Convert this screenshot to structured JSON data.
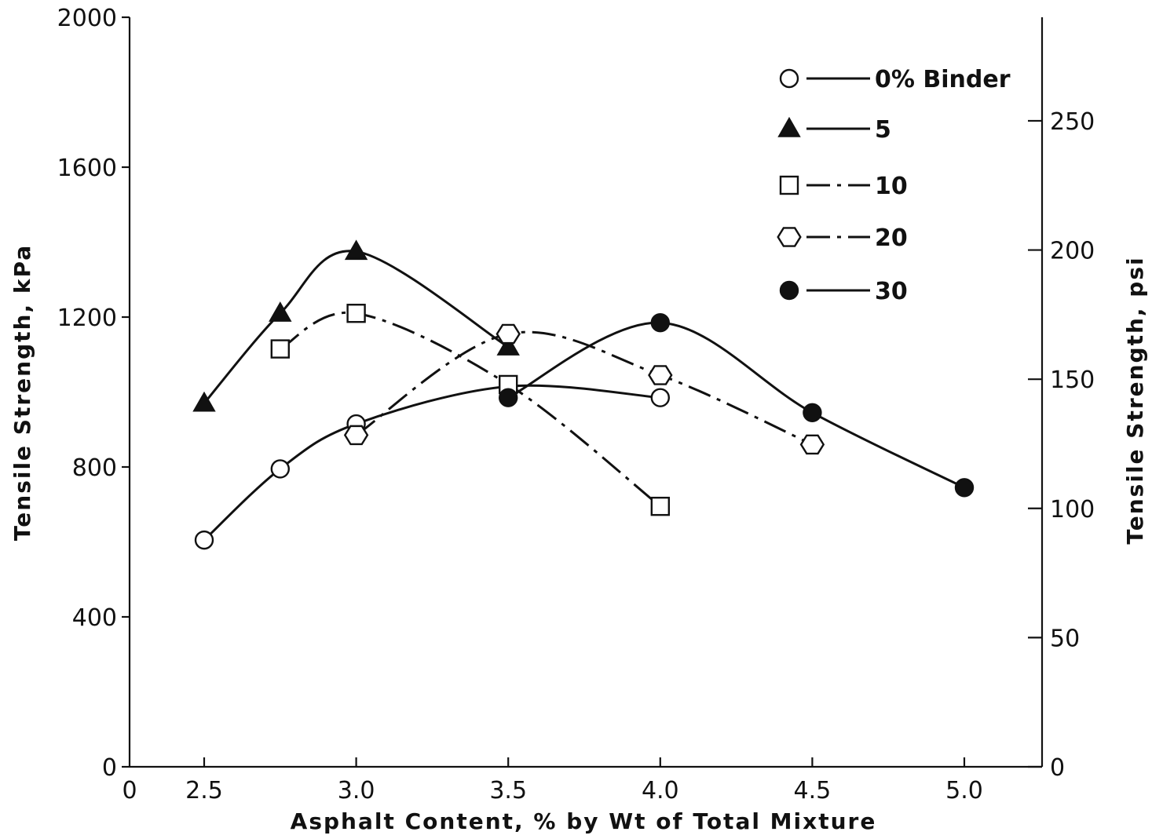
{
  "chart_data": {
    "type": "line",
    "xlabel": "Asphalt Content, % by Wt of Total Mixture",
    "ylabel": "Tensile Strength, kPa",
    "ylabel_right": "Tensile Strength, psi",
    "xlim": [
      0,
      5.25
    ],
    "ylim": [
      0,
      2000
    ],
    "ylim_right": [
      0,
      290.08
    ],
    "x_tick_labels": [
      "0",
      "2.5",
      "3.0",
      "3.5",
      "4.0",
      "4.5",
      "5.0"
    ],
    "y_ticks": [
      0,
      400,
      800,
      1200,
      1600,
      2000
    ],
    "y_tick_labels": [
      "0",
      "400",
      "800",
      "1200",
      "1600",
      "2000"
    ],
    "y_right_ticks": [
      0,
      50,
      100,
      150,
      200,
      250
    ],
    "y_right_tick_labels": [
      "0",
      "50",
      "100",
      "150",
      "200",
      "250"
    ],
    "grid": false,
    "legend_position": "top-right",
    "series": [
      {
        "name": "0% Binder",
        "marker": "open-circle",
        "line": "solid",
        "x": [
          2.5,
          2.75,
          3.0,
          3.5,
          4.0
        ],
        "y": [
          605,
          795,
          915,
          1015,
          985
        ]
      },
      {
        "name": "5",
        "marker": "filled-triangle",
        "line": "solid",
        "x": [
          2.5,
          2.75,
          3.0,
          3.5
        ],
        "y": [
          970,
          1210,
          1375,
          1120
        ]
      },
      {
        "name": "10",
        "marker": "open-square",
        "line": "dash-dot",
        "x": [
          2.75,
          3.0,
          3.5,
          4.0
        ],
        "y": [
          1115,
          1210,
          1020,
          695
        ]
      },
      {
        "name": "20",
        "marker": "open-hexagon",
        "line": "dash-dot",
        "x": [
          3.0,
          3.5,
          4.0,
          4.5
        ],
        "y": [
          885,
          1155,
          1045,
          860
        ]
      },
      {
        "name": "30",
        "marker": "filled-circle",
        "line": "solid",
        "x": [
          3.5,
          4.0,
          4.5,
          5.0
        ],
        "y": [
          985,
          1185,
          945,
          745
        ]
      }
    ]
  }
}
